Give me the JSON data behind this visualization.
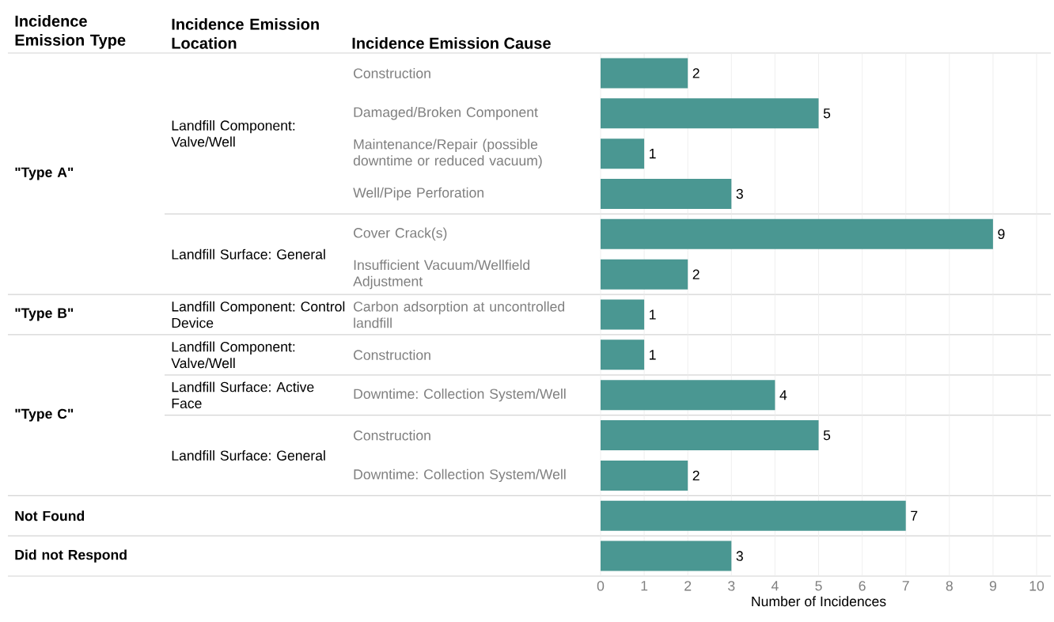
{
  "chart_data": {
    "type": "bar",
    "orientation": "horizontal",
    "ylabel": "Incidence Emission Cause",
    "xlabel": "Number of Incidences",
    "categories": [
      "Construction",
      "Damaged/Broken Component",
      "Maintenance/Repair (possible downtime or reduced vacuum)",
      "Well/Pipe Perforation",
      "Cover Crack(s)",
      "Insufficient Vacuum/Wellfield Adjustment",
      "Carbon adsorption at uncontrolled landfill",
      "Construction",
      "Downtime: Collection System/Well",
      "Construction",
      "Downtime: Collection System/Well",
      null,
      null
    ],
    "values": [
      2,
      5,
      1,
      3,
      9,
      2,
      1,
      1,
      4,
      5,
      2,
      7,
      3
    ],
    "color": "#4a9792",
    "xlim": [
      0,
      10
    ],
    "xticks": [
      0,
      1,
      2,
      3,
      4,
      5,
      6,
      7,
      8,
      9,
      10
    ],
    "grid": "x",
    "data_labels": true,
    "annotations": [
      "Incidence Emission Type",
      "Incidence Emission Location",
      "\"Type A\"",
      "\"Type B\"",
      "\"Type C\"",
      "Not Found",
      "Did not Respond",
      "Landfill Component: Valve/Well",
      "Landfill Surface: General",
      "Landfill Component: Control Device",
      "Landfill Component: Valve/Well",
      "Landfill Surface: Active Face",
      "Landfill Surface: General"
    ]
  }
}
